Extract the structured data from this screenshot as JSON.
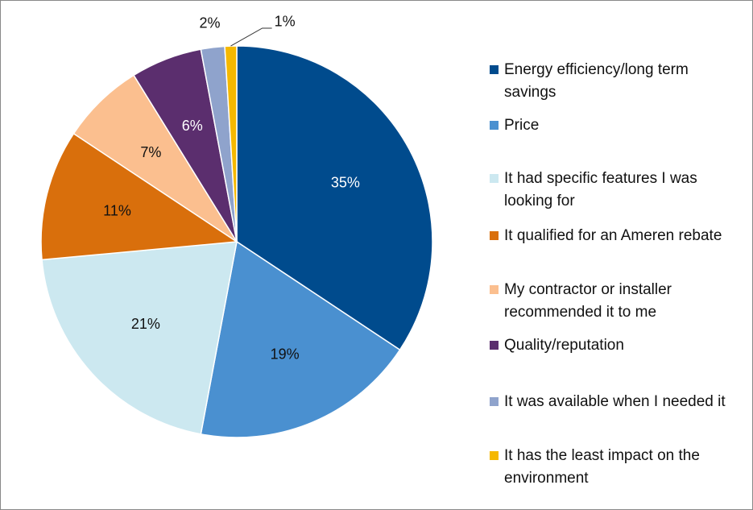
{
  "chart_data": {
    "type": "pie",
    "categories": [
      "Energy efficiency/long term savings",
      "Price",
      "It had specific features I was looking for",
      "It qualified for an Ameren rebate",
      "My contractor or installer recommended it to me",
      "Quality/reputation",
      "It was available when I needed it",
      "It has the least impact on the environment"
    ],
    "values": [
      35,
      19,
      21,
      11,
      7,
      6,
      2,
      1
    ],
    "value_labels": [
      "35%",
      "19%",
      "21%",
      "11%",
      "7%",
      "6%",
      "2%",
      "1%"
    ],
    "colors": [
      "#004b8d",
      "#4a90d0",
      "#cce8f0",
      "#d96f0c",
      "#fbbf8f",
      "#5b2e6e",
      "#8fa3cc",
      "#f5b800"
    ],
    "legend": "right"
  }
}
